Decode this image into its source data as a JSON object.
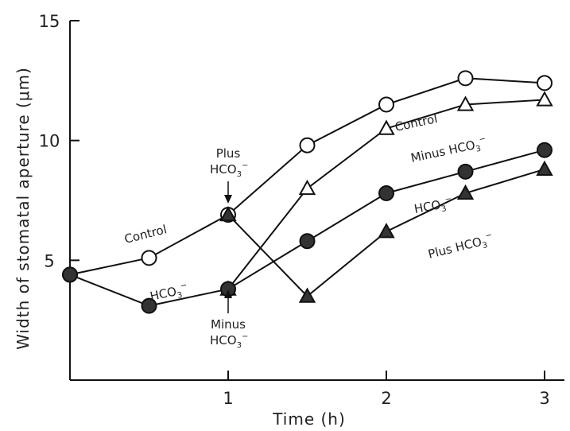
{
  "chart_data": {
    "type": "line",
    "xlabel": "Time (h)",
    "ylabel": "Width of stomatal aperture (μm)",
    "xlim": [
      0,
      3.1
    ],
    "ylim": [
      0,
      15
    ],
    "x_ticks": [
      1,
      2,
      3
    ],
    "y_ticks": [
      5,
      10,
      15
    ],
    "grid": false,
    "series": [
      {
        "key": "control",
        "marker": "open-circle",
        "x": [
          0,
          0.5,
          1,
          1.5,
          2,
          2.5,
          3
        ],
        "y": [
          4.4,
          5.1,
          6.9,
          9.8,
          11.5,
          12.6,
          12.4
        ]
      },
      {
        "key": "minus",
        "marker": "open-triangle",
        "x": [
          1,
          1.5,
          2,
          2.5,
          3
        ],
        "y": [
          3.8,
          8.0,
          10.5,
          11.5,
          11.7
        ]
      },
      {
        "key": "hco3",
        "marker": "filled-circle",
        "x": [
          0,
          0.5,
          1,
          1.5,
          2,
          2.5,
          3
        ],
        "y": [
          4.4,
          3.1,
          3.8,
          5.8,
          7.8,
          8.7,
          9.6
        ]
      },
      {
        "key": "plus",
        "marker": "filled-triangle",
        "x": [
          1,
          1.5,
          2,
          2.5,
          3
        ],
        "y": [
          6.9,
          3.5,
          6.2,
          7.8,
          8.8
        ]
      }
    ],
    "annotations": [
      {
        "key": "control_left",
        "text": "Control"
      },
      {
        "key": "control_right",
        "text": "Control"
      },
      {
        "key": "hco3_left",
        "text": "HCO",
        "sub": "3",
        "sup": "−"
      },
      {
        "key": "hco3_right",
        "text": "HCO",
        "sub": "3",
        "sup": "−"
      },
      {
        "key": "minus_label",
        "text": "Minus HCO",
        "sub": "3",
        "sup": "−"
      },
      {
        "key": "plus_label",
        "text": "Plus HCO",
        "sub": "3",
        "sup": "−"
      },
      {
        "key": "plus_arrow",
        "line1": "Plus",
        "line2": "HCO",
        "sub": "3",
        "sup": "−"
      },
      {
        "key": "minus_arrow",
        "line1": "Minus",
        "line2": "HCO",
        "sub": "3",
        "sup": "−"
      }
    ]
  }
}
